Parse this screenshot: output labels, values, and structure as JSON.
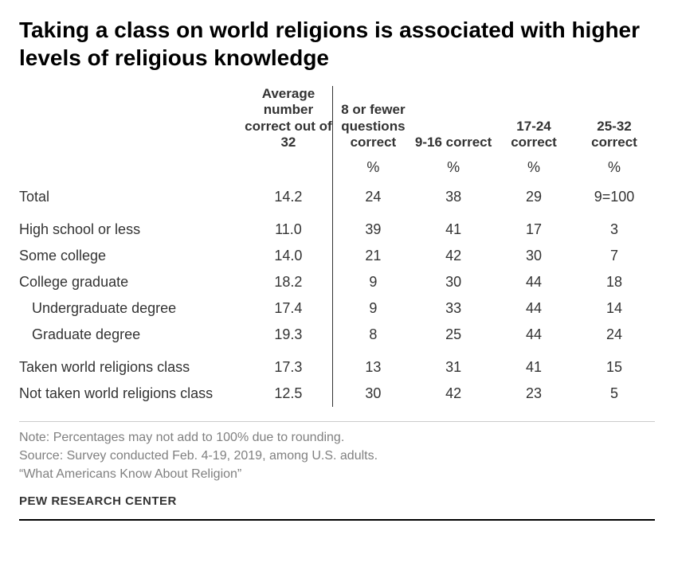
{
  "title": "Taking a class on world religions is associated with higher levels of religious knowledge",
  "columns": {
    "avg": "Average number correct out of 32",
    "c1": "8 or fewer questions correct",
    "c2": "9-16 correct",
    "c3": "17-24 correct",
    "c4": "25-32 correct"
  },
  "pct_label": "%",
  "rows": {
    "total": {
      "label": "Total",
      "avg": "14.2",
      "c1": "24",
      "c2": "38",
      "c3": "29",
      "c4": "9=100"
    },
    "hs": {
      "label": "High school or less",
      "avg": "11.0",
      "c1": "39",
      "c2": "41",
      "c3": "17",
      "c4": "3"
    },
    "some": {
      "label": "Some college",
      "avg": "14.0",
      "c1": "21",
      "c2": "42",
      "c3": "30",
      "c4": "7"
    },
    "grad": {
      "label": "College graduate",
      "avg": "18.2",
      "c1": "9",
      "c2": "30",
      "c3": "44",
      "c4": "18"
    },
    "under": {
      "label": "Undergraduate degree",
      "avg": "17.4",
      "c1": "9",
      "c2": "33",
      "c3": "44",
      "c4": "14"
    },
    "gdeg": {
      "label": "Graduate degree",
      "avg": "19.3",
      "c1": "8",
      "c2": "25",
      "c3": "44",
      "c4": "24"
    },
    "taken": {
      "label": "Taken world religions class",
      "avg": "17.3",
      "c1": "13",
      "c2": "31",
      "c3": "41",
      "c4": "15"
    },
    "nottaken": {
      "label": "Not taken world religions class",
      "avg": "12.5",
      "c1": "30",
      "c2": "42",
      "c3": "23",
      "c4": "5"
    }
  },
  "notes": {
    "n1": "Note: Percentages may not add to 100% due to rounding.",
    "n2": "Source: Survey conducted Feb. 4-19, 2019, among U.S. adults.",
    "n3": "“What Americans Know About Religion”"
  },
  "branding": "PEW RESEARCH CENTER",
  "styling": {
    "title_fontsize": 28,
    "body_fontsize": 18,
    "notes_fontsize": 16,
    "title_color": "#000000",
    "text_color": "#333333",
    "notes_color": "#808080",
    "background_color": "#ffffff",
    "divider_color": "#333333",
    "note_rule_color": "#cccccc",
    "bottom_rule_color": "#000000"
  }
}
